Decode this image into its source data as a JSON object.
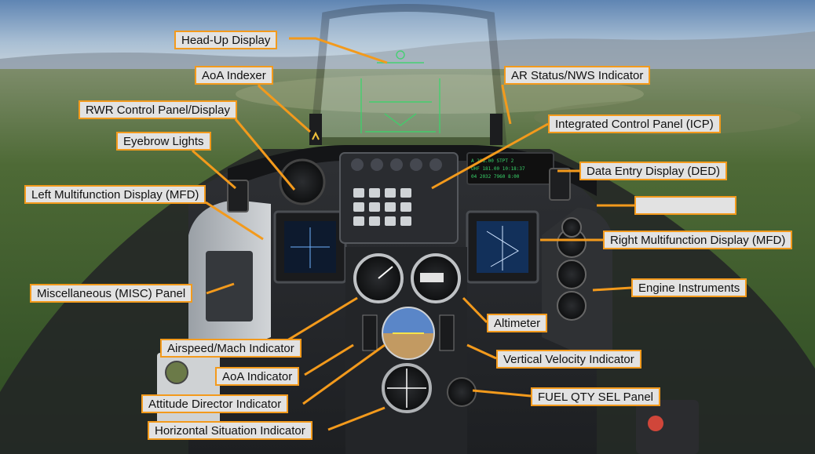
{
  "callouts": {
    "hud": "Head-Up Display",
    "aoa_indexer": "AoA Indexer",
    "ar_status": "AR Status/NWS Indicator",
    "rwr": "RWR Control Panel/Display",
    "icp": "Integrated Control Panel (ICP)",
    "eyebrow": "Eyebrow Lights",
    "ded": "Data Entry Display (DED)",
    "blank": "",
    "left_mfd": "Left Multifunction Display (MFD)",
    "right_mfd": "Right Multifunction Display (MFD)",
    "misc": "Miscellaneous (MISC) Panel",
    "engine": "Engine Instruments",
    "altimeter": "Altimeter",
    "airspeed": "Airspeed/Mach Indicator",
    "vvi": "Vertical Velocity Indicator",
    "aoa_indicator": "AoA Indicator",
    "fuel": "FUEL QTY SEL Panel",
    "adi": "Attitude Director Indicator",
    "hsi": "Horizontal Situation Indicator"
  },
  "colors": {
    "sky": "#8fa9c4",
    "forest": "#3c5a2a",
    "panel": "#3a3d42",
    "accent": "#f39a1c",
    "callout_bg": "#e2e2e2"
  }
}
